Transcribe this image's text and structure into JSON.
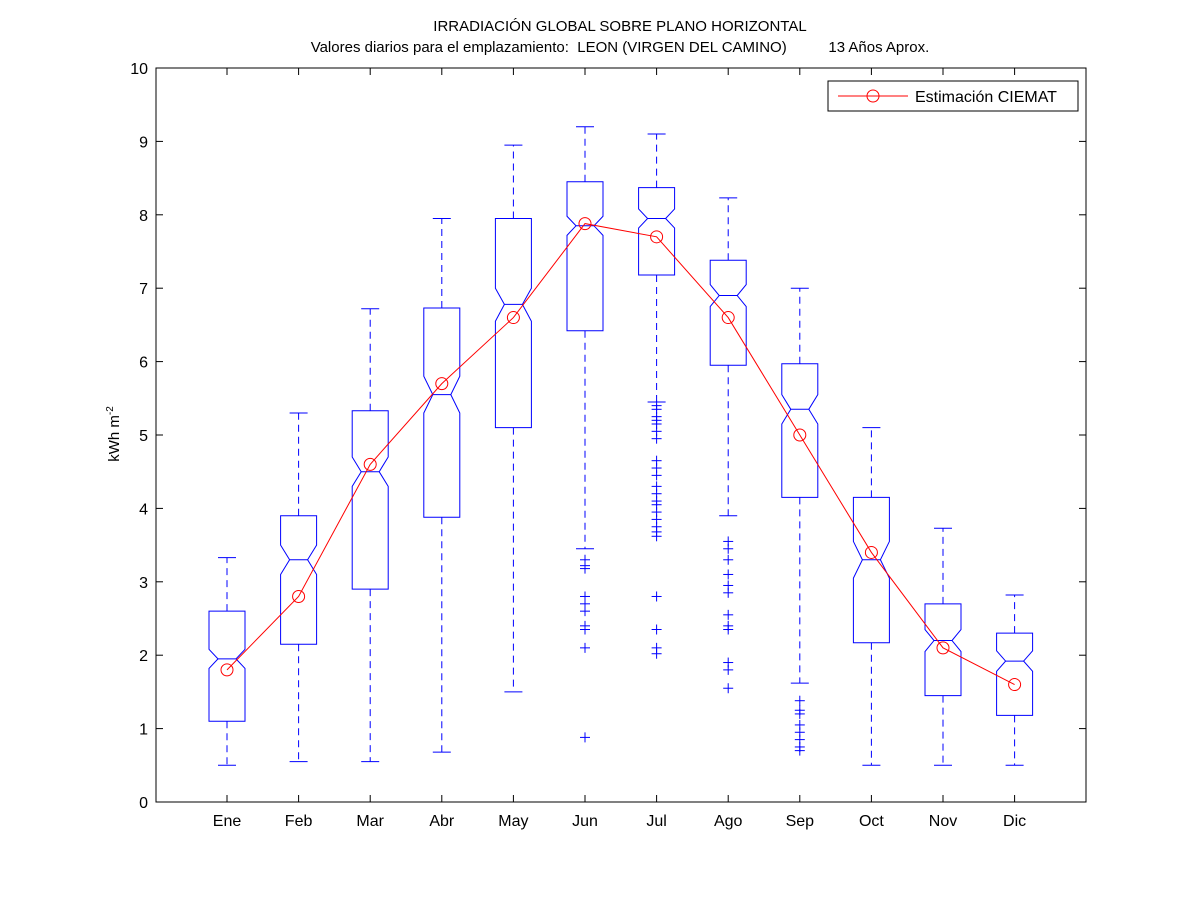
{
  "chart_data": {
    "type": "boxplot",
    "title": "IRRADIACIÓN GLOBAL SOBRE PLANO HORIZONTAL",
    "subtitle": "Valores diarios para el emplazamiento:  LEON (VIRGEN DEL CAMINO)          13 Años Aprox.",
    "ylabel": "kWh m",
    "ylabel_exponent": "-2",
    "ylim": [
      0,
      10
    ],
    "yticks": [
      0,
      1,
      2,
      3,
      4,
      5,
      6,
      7,
      8,
      9,
      10
    ],
    "grid": false,
    "legend_position": "top-right",
    "categories": [
      "Ene",
      "Feb",
      "Mar",
      "Abr",
      "May",
      "Jun",
      "Jul",
      "Ago",
      "Sep",
      "Oct",
      "Nov",
      "Dic"
    ],
    "boxes": [
      {
        "whisker_low": 0.5,
        "q1": 1.1,
        "median": 1.95,
        "q3": 2.6,
        "whisker_high": 3.33,
        "notch_low": 1.82,
        "notch_high": 2.08,
        "outliers": []
      },
      {
        "whisker_low": 0.55,
        "q1": 2.15,
        "median": 3.3,
        "q3": 3.9,
        "whisker_high": 5.3,
        "notch_low": 3.1,
        "notch_high": 3.5,
        "outliers": []
      },
      {
        "whisker_low": 0.55,
        "q1": 2.9,
        "median": 4.5,
        "q3": 5.33,
        "whisker_high": 6.72,
        "notch_low": 4.3,
        "notch_high": 4.7,
        "outliers": []
      },
      {
        "whisker_low": 0.68,
        "q1": 3.88,
        "median": 5.55,
        "q3": 6.73,
        "whisker_high": 7.95,
        "notch_low": 5.3,
        "notch_high": 5.8,
        "outliers": []
      },
      {
        "whisker_low": 1.5,
        "q1": 5.1,
        "median": 6.78,
        "q3": 7.95,
        "whisker_high": 8.95,
        "notch_low": 6.55,
        "notch_high": 7.0,
        "outliers": []
      },
      {
        "whisker_low": 3.45,
        "q1": 6.42,
        "median": 7.85,
        "q3": 8.45,
        "whisker_high": 9.2,
        "notch_low": 7.72,
        "notch_high": 7.98,
        "outliers": [
          3.3,
          3.22,
          3.18,
          2.8,
          2.7,
          2.6,
          2.4,
          2.35,
          2.1,
          0.88
        ]
      },
      {
        "whisker_low": 5.45,
        "q1": 7.18,
        "median": 7.95,
        "q3": 8.37,
        "whisker_high": 9.1,
        "notch_low": 7.82,
        "notch_high": 8.08,
        "outliers": [
          5.4,
          5.35,
          5.25,
          5.2,
          5.15,
          5.05,
          4.95,
          4.65,
          4.55,
          4.45,
          4.3,
          4.2,
          4.1,
          4.05,
          3.95,
          3.85,
          3.75,
          3.68,
          3.62,
          2.8,
          2.35,
          2.1,
          2.02
        ]
      },
      {
        "whisker_low": 3.9,
        "q1": 5.95,
        "median": 6.9,
        "q3": 7.38,
        "whisker_high": 8.23,
        "notch_low": 6.75,
        "notch_high": 7.05,
        "outliers": [
          3.55,
          3.45,
          3.3,
          3.1,
          2.95,
          2.85,
          2.55,
          2.4,
          2.35,
          1.9,
          1.8,
          1.55
        ]
      },
      {
        "whisker_low": 1.62,
        "q1": 4.15,
        "median": 5.35,
        "q3": 5.97,
        "whisker_high": 7.0,
        "notch_low": 5.15,
        "notch_high": 5.55,
        "outliers": [
          1.38,
          1.25,
          1.2,
          1.05,
          0.95,
          0.85,
          0.75,
          0.7
        ]
      },
      {
        "whisker_low": 0.5,
        "q1": 2.17,
        "median": 3.3,
        "q3": 4.15,
        "whisker_high": 5.1,
        "notch_low": 3.05,
        "notch_high": 3.55,
        "outliers": []
      },
      {
        "whisker_low": 0.5,
        "q1": 1.45,
        "median": 2.2,
        "q3": 2.7,
        "whisker_high": 3.73,
        "notch_low": 2.05,
        "notch_high": 2.35,
        "outliers": []
      },
      {
        "whisker_low": 0.5,
        "q1": 1.18,
        "median": 1.92,
        "q3": 2.3,
        "whisker_high": 2.82,
        "notch_low": 1.78,
        "notch_high": 2.06,
        "outliers": []
      }
    ],
    "series": [
      {
        "name": "Estimación CIEMAT",
        "values": [
          1.8,
          2.8,
          4.6,
          5.7,
          6.6,
          7.88,
          7.7,
          6.6,
          5.0,
          3.4,
          2.1,
          1.6
        ]
      }
    ],
    "colors": {
      "box": "#0000ff",
      "line": "#ff0000",
      "axis": "#000000"
    }
  }
}
